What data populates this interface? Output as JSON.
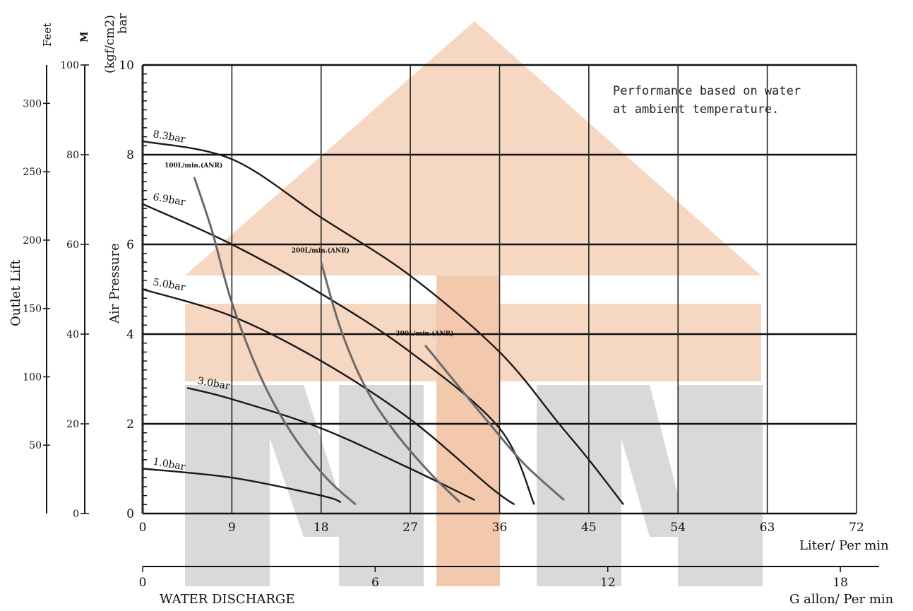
{
  "chart_data": {
    "type": "line",
    "title": "",
    "note": [
      "Performance based on water",
      "at ambient temperature."
    ],
    "x_axis": {
      "label": "Liter/ Per min",
      "range": [
        0,
        72
      ],
      "ticks": [
        "0",
        "9",
        "18",
        "27",
        "36",
        "45",
        "54",
        "63",
        "72"
      ]
    },
    "x2_axis": {
      "label": "G allon/ Per min",
      "range": [
        0,
        19
      ],
      "ticks": [
        "0",
        "6",
        "12",
        "18"
      ]
    },
    "bottom_label": "WATER DISCHARGE",
    "y_axis": {
      "label": "Air Pressure",
      "unit_line1": "(kgf/cm2)",
      "unit_line2": "bar",
      "range": [
        0,
        10
      ],
      "ticks": [
        "0",
        "2",
        "4",
        "6",
        "8",
        "10"
      ]
    },
    "outlet_lift_axis": {
      "label": "Outlet Lift",
      "m_label": "M",
      "m_ticks": [
        "0",
        "20",
        "40",
        "60",
        "80",
        "100"
      ],
      "feet_label": "Feet",
      "feet_ticks": [
        "50",
        "100",
        "150",
        "200",
        "250",
        "300"
      ]
    },
    "grid": true,
    "series": [
      {
        "name": "8.3bar",
        "points": [
          [
            0,
            8.3
          ],
          [
            9,
            7.9
          ],
          [
            18,
            6.6
          ],
          [
            27,
            5.3
          ],
          [
            36,
            3.6
          ],
          [
            42,
            2.0
          ],
          [
            45,
            1.2
          ],
          [
            48.5,
            0.2
          ]
        ]
      },
      {
        "name": "6.9bar",
        "points": [
          [
            0,
            6.9
          ],
          [
            9,
            6.0
          ],
          [
            18,
            4.9
          ],
          [
            27,
            3.6
          ],
          [
            36,
            1.9
          ],
          [
            39.5,
            0.2
          ]
        ]
      },
      {
        "name": "5.0bar",
        "points": [
          [
            0,
            5.0
          ],
          [
            9,
            4.4
          ],
          [
            18,
            3.4
          ],
          [
            27,
            2.1
          ],
          [
            35,
            0.6
          ],
          [
            37.5,
            0.2
          ]
        ]
      },
      {
        "name": "3.0bar",
        "points": [
          [
            4.5,
            2.8
          ],
          [
            9,
            2.55
          ],
          [
            18,
            1.9
          ],
          [
            27,
            1.0
          ],
          [
            33.5,
            0.3
          ]
        ]
      },
      {
        "name": "1.0bar",
        "points": [
          [
            0,
            1.0
          ],
          [
            9,
            0.8
          ],
          [
            18,
            0.4
          ],
          [
            20,
            0.25
          ]
        ]
      },
      {
        "name": "100L/min.(ANR)",
        "points": [
          [
            5.2,
            7.5
          ],
          [
            7,
            6.3
          ],
          [
            9,
            4.7
          ],
          [
            12,
            3.0
          ],
          [
            15,
            1.8
          ],
          [
            18.5,
            0.8
          ],
          [
            21.5,
            0.2
          ]
        ]
      },
      {
        "name": "200L/min.(ANR)",
        "points": [
          [
            18,
            5.6
          ],
          [
            20,
            4.1
          ],
          [
            22.5,
            2.8
          ],
          [
            25.5,
            1.8
          ],
          [
            29,
            0.9
          ],
          [
            32,
            0.25
          ]
        ]
      },
      {
        "name": "300L/min.(ANR)",
        "points": [
          [
            28.5,
            3.75
          ],
          [
            32,
            2.8
          ],
          [
            35,
            2.0
          ],
          [
            38.5,
            1.1
          ],
          [
            42.5,
            0.3
          ]
        ]
      }
    ]
  }
}
